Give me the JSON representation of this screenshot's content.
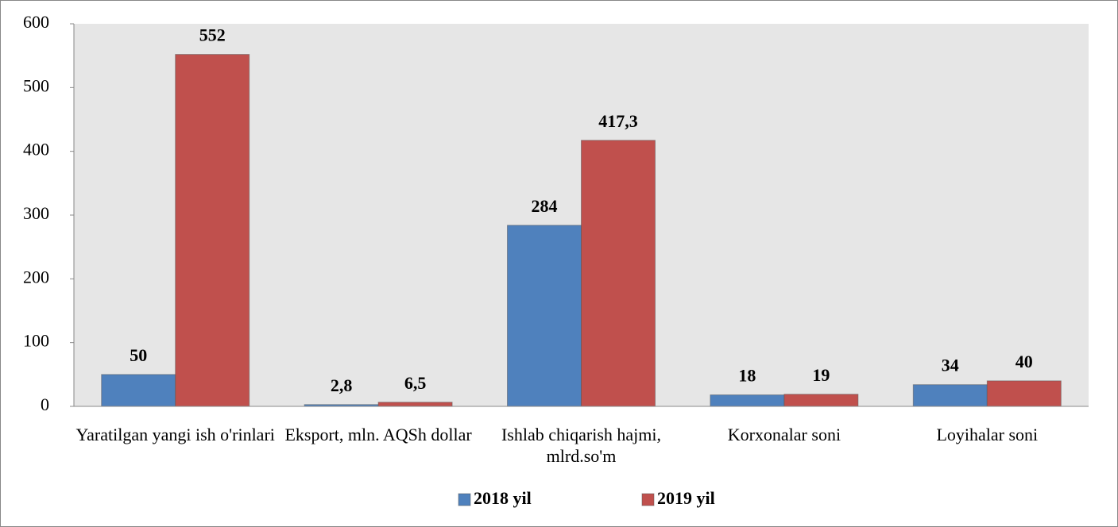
{
  "chart_data": {
    "type": "bar",
    "categories": [
      "Yaratilgan yangi ish o'rinlari",
      "Eksport, mln. AQSh dollar",
      "Ishlab chiqarish hajmi, mlrd.so'm",
      "Korxonalar soni",
      "Loyihalar soni"
    ],
    "series": [
      {
        "name": "2018 yil",
        "color": "#4f81bd",
        "values": [
          50,
          2.8,
          284,
          18,
          34
        ],
        "value_labels": [
          "50",
          "2,8",
          "284",
          "18",
          "34"
        ]
      },
      {
        "name": "2019 yil",
        "color": "#c0504d",
        "values": [
          552,
          6.5,
          417.3,
          19,
          40
        ],
        "value_labels": [
          "552",
          "6,5",
          "417,3",
          "19",
          "40"
        ]
      }
    ],
    "ylim": [
      0,
      600
    ],
    "yticks": [
      0,
      100,
      200,
      300,
      400,
      500,
      600
    ],
    "grid": false,
    "legend": "bottom"
  }
}
